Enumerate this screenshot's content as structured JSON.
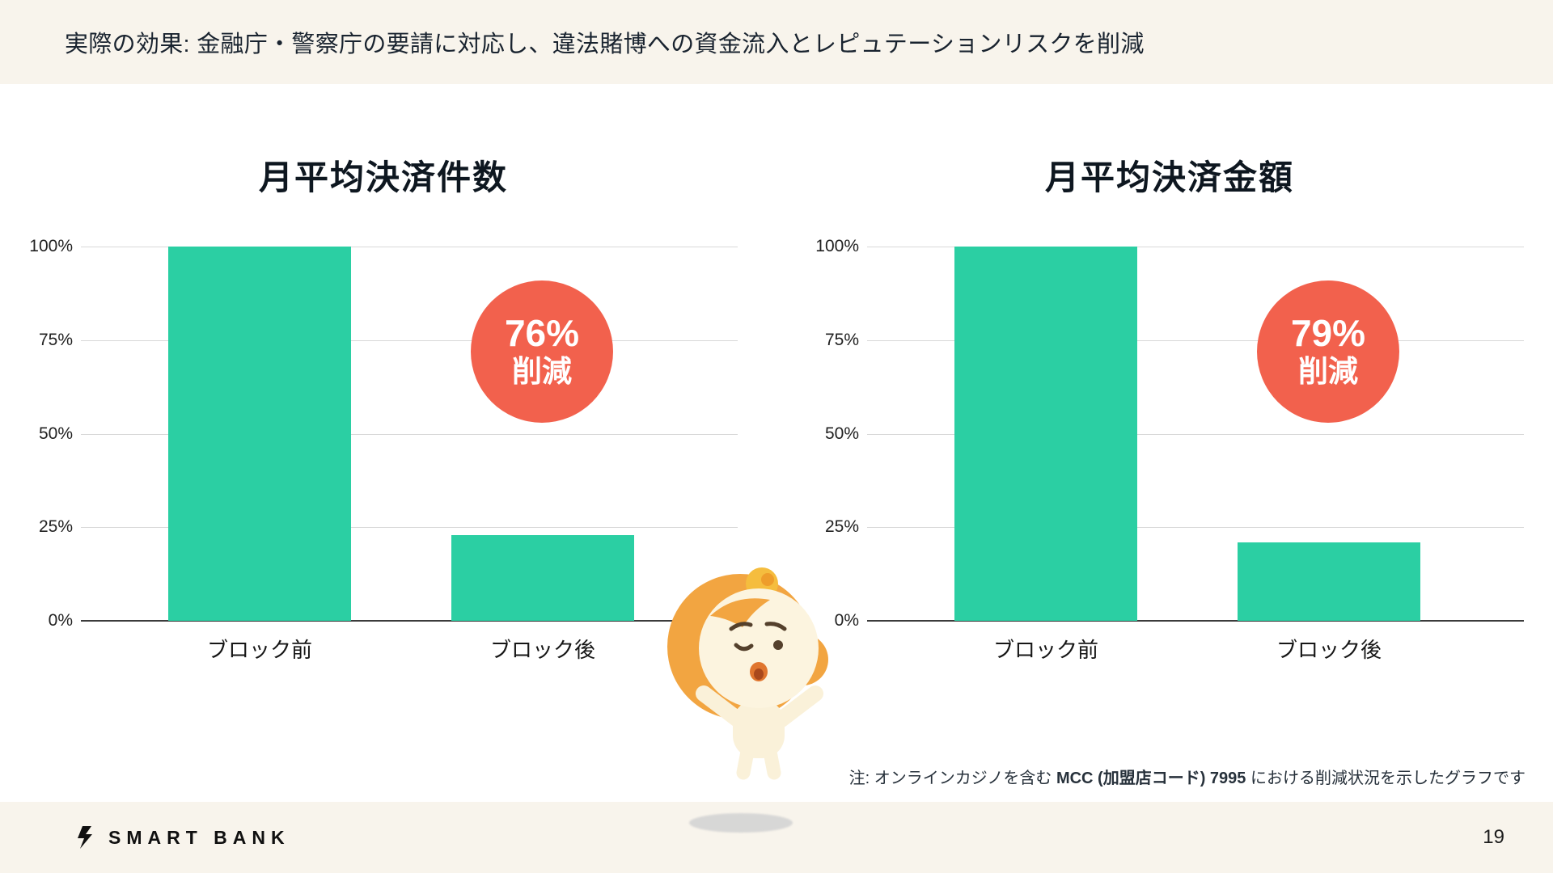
{
  "header": {
    "title": "実際の効果: 金融庁・警察庁の要請に対応し、違法賭博への資金流入とレピュテーションリスクを削減"
  },
  "chart_data": [
    {
      "type": "bar",
      "title": "月平均決済件数",
      "categories": [
        "ブロック前",
        "ブロック後"
      ],
      "values": [
        100,
        23
      ],
      "ylabel": "",
      "xlabel": "",
      "ylim": [
        0,
        100
      ],
      "yticks": [
        100,
        75,
        50,
        25,
        0
      ],
      "ytick_labels": [
        "100%",
        "75%",
        "50%",
        "25%",
        "0%"
      ],
      "grid": "horizontal",
      "legend": "none",
      "bar_color": "#2BCFA3",
      "badge_color": "#F2614D",
      "badge": {
        "line1": "76%",
        "line2": "削減"
      }
    },
    {
      "type": "bar",
      "title": "月平均決済金額",
      "categories": [
        "ブロック前",
        "ブロック後"
      ],
      "values": [
        100,
        21
      ],
      "ylabel": "",
      "xlabel": "",
      "ylim": [
        0,
        100
      ],
      "yticks": [
        100,
        75,
        50,
        25,
        0
      ],
      "ytick_labels": [
        "100%",
        "75%",
        "50%",
        "25%",
        "0%"
      ],
      "grid": "horizontal",
      "legend": "none",
      "bar_color": "#2BCFA3",
      "badge_color": "#F2614D",
      "badge": {
        "line1": "79%",
        "line2": "削減"
      }
    }
  ],
  "footnote": {
    "prefix": "注: オンラインカジノを含む ",
    "bold": "MCC (加盟店コード) 7995",
    "suffix": " における削減状況を示したグラフです"
  },
  "footer": {
    "logo_text": "SMART BANK",
    "page_number": "19"
  },
  "icons": {
    "logo_mark": "lightning-bolt",
    "mascot": "smartbank-dog-mascot-winking"
  },
  "colors": {
    "bar_teal": "#2BCFA3",
    "badge_coral": "#F2614D",
    "band_cream": "#F8F4EC"
  }
}
